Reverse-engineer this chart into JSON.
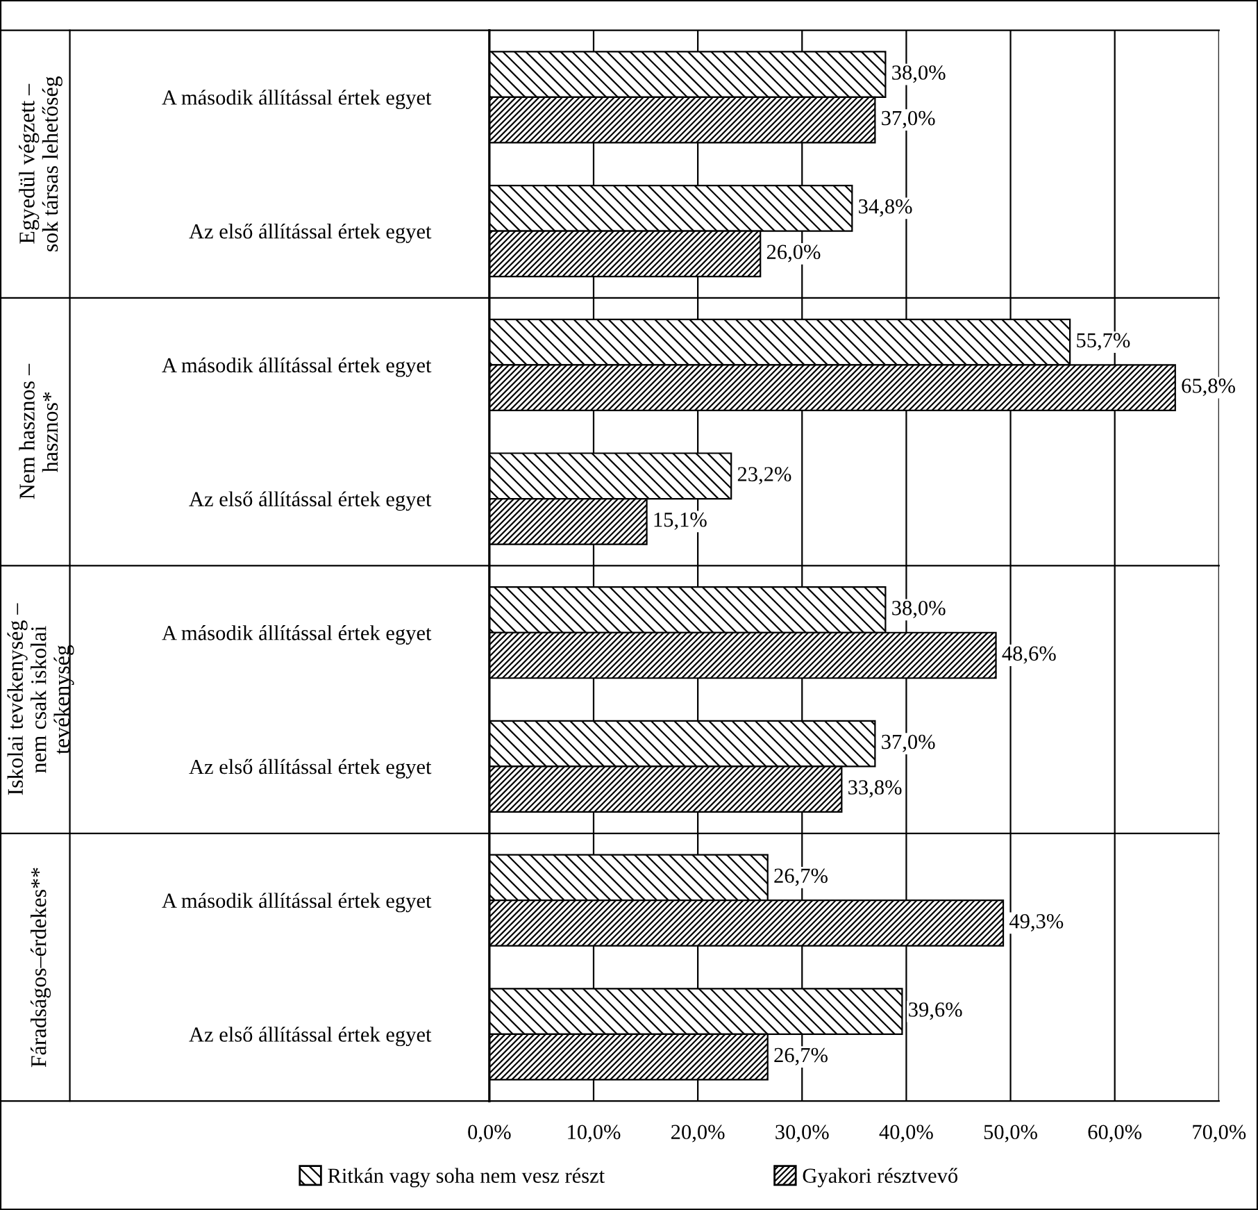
{
  "chart_data": {
    "type": "bar",
    "orientation": "horizontal",
    "categories": [
      "A második állítással értek egyet",
      "Az első állítással értek egyet",
      "A második állítással értek egyet",
      "Az első állítással értek egyet",
      "A második állítással értek egyet",
      "Az első állítással értek egyet",
      "A második állítással értek egyet",
      "Az első állítással értek egyet"
    ],
    "series": [
      {
        "name": "Ritkán vagy soha nem vesz részt",
        "color": "#000000",
        "values": [
          38.0,
          34.8,
          55.7,
          23.2,
          38.0,
          37.0,
          26.7,
          39.6
        ],
        "value_labels": [
          "38,0%",
          "34,8%",
          "55,7%",
          "23,2%",
          "38,0%",
          "37,0%",
          "26,7%",
          "39,6%"
        ]
      },
      {
        "name": "Gyakori résztvevő",
        "color": "#000000",
        "values": [
          37.0,
          26.0,
          65.8,
          15.1,
          48.6,
          33.8,
          49.3,
          26.7
        ],
        "value_labels": [
          "37,0%",
          "26,0%",
          "65,8%",
          "15,1%",
          "48,6%",
          "33,8%",
          "49,3%",
          "26,7%"
        ]
      }
    ],
    "annotations": [
      "Egyedül végzett –\nsok társas lehetőség",
      "Nem hasznos –\nhasznos*",
      "Iskolai tevékenység –\nnem csak iskolai\ntevékenység",
      "Fáradságos–érdekes**"
    ],
    "xlim": [
      0,
      70
    ],
    "xticks": [
      {
        "value": 0,
        "label": "0,0%"
      },
      {
        "value": 10,
        "label": "10,0%"
      },
      {
        "value": 20,
        "label": "20,0%"
      },
      {
        "value": 30,
        "label": "30,0%"
      },
      {
        "value": 40,
        "label": "40,0%"
      },
      {
        "value": 50,
        "label": "50,0%"
      },
      {
        "value": 60,
        "label": "60,0%"
      },
      {
        "value": 70,
        "label": "70,0%"
      }
    ],
    "grid": "x",
    "legend": "bottom"
  }
}
